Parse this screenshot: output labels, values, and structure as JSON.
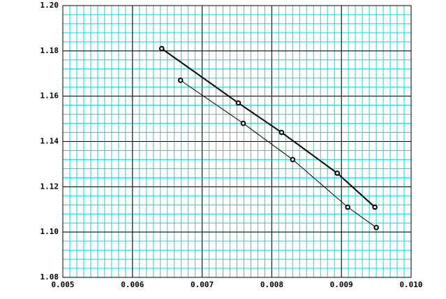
{
  "chart_data": {
    "type": "line",
    "series": [
      {
        "color": "#000000",
        "line_width": 2,
        "x": [
          0.00642,
          0.00752,
          0.00814,
          0.00894,
          0.00948
        ],
        "values": [
          1.181,
          1.157,
          1.144,
          1.126,
          1.111
        ]
      },
      {
        "color": "#000000",
        "line_width": 1,
        "x": [
          0.00669,
          0.00759,
          0.0083,
          0.00909,
          0.0095
        ],
        "values": [
          1.167,
          1.148,
          1.132,
          1.111,
          1.102
        ]
      }
    ],
    "xlim": [
      0.005,
      0.01
    ],
    "xticks": [
      0.005,
      0.006,
      0.007,
      0.008,
      0.009,
      {
        "value": 0.01,
        "label": "0.010"
      }
    ],
    "ylim": [
      1.08,
      1.2
    ],
    "yticks": [
      1.08,
      {
        "value": 1.1,
        "label": "1.10"
      },
      1.12,
      1.14,
      1.16,
      1.18,
      {
        "value": 1.2,
        "label": "1.20"
      }
    ],
    "grid": true,
    "grid_color": "#00e0e0"
  }
}
